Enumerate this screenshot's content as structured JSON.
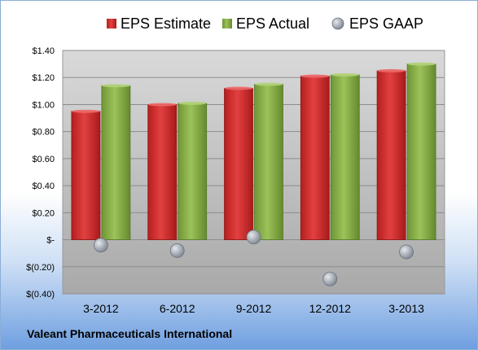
{
  "company_name": "Valeant Pharmaceuticals International",
  "chart_data": {
    "type": "bar",
    "title": "",
    "xlabel": "",
    "ylabel": "",
    "categories": [
      "3-2012",
      "6-2012",
      "9-2012",
      "12-2012",
      "3-2013"
    ],
    "series": [
      {
        "name": "EPS Estimate",
        "kind": "bar",
        "color": "#d42a2a",
        "values": [
          0.95,
          1.0,
          1.12,
          1.21,
          1.25
        ]
      },
      {
        "name": "EPS Actual",
        "kind": "bar",
        "color": "#8ab048",
        "values": [
          1.14,
          1.01,
          1.15,
          1.22,
          1.3
        ]
      },
      {
        "name": "EPS GAAP",
        "kind": "scatter",
        "color": "#9aa3ad",
        "values": [
          -0.04,
          -0.08,
          0.02,
          -0.29,
          -0.09
        ]
      }
    ],
    "ylim": [
      -0.4,
      1.4
    ],
    "yticks": [
      -0.4,
      -0.2,
      0,
      0.2,
      0.4,
      0.6,
      0.8,
      1.0,
      1.2,
      1.4
    ],
    "ytick_labels": [
      "$(0.40)",
      "$(0.20)",
      "$-",
      "$0.20",
      "$0.40",
      "$0.60",
      "$0.80",
      "$1.00",
      "$1.20",
      "$1.40"
    ],
    "grid": true,
    "legend_position": "top"
  }
}
